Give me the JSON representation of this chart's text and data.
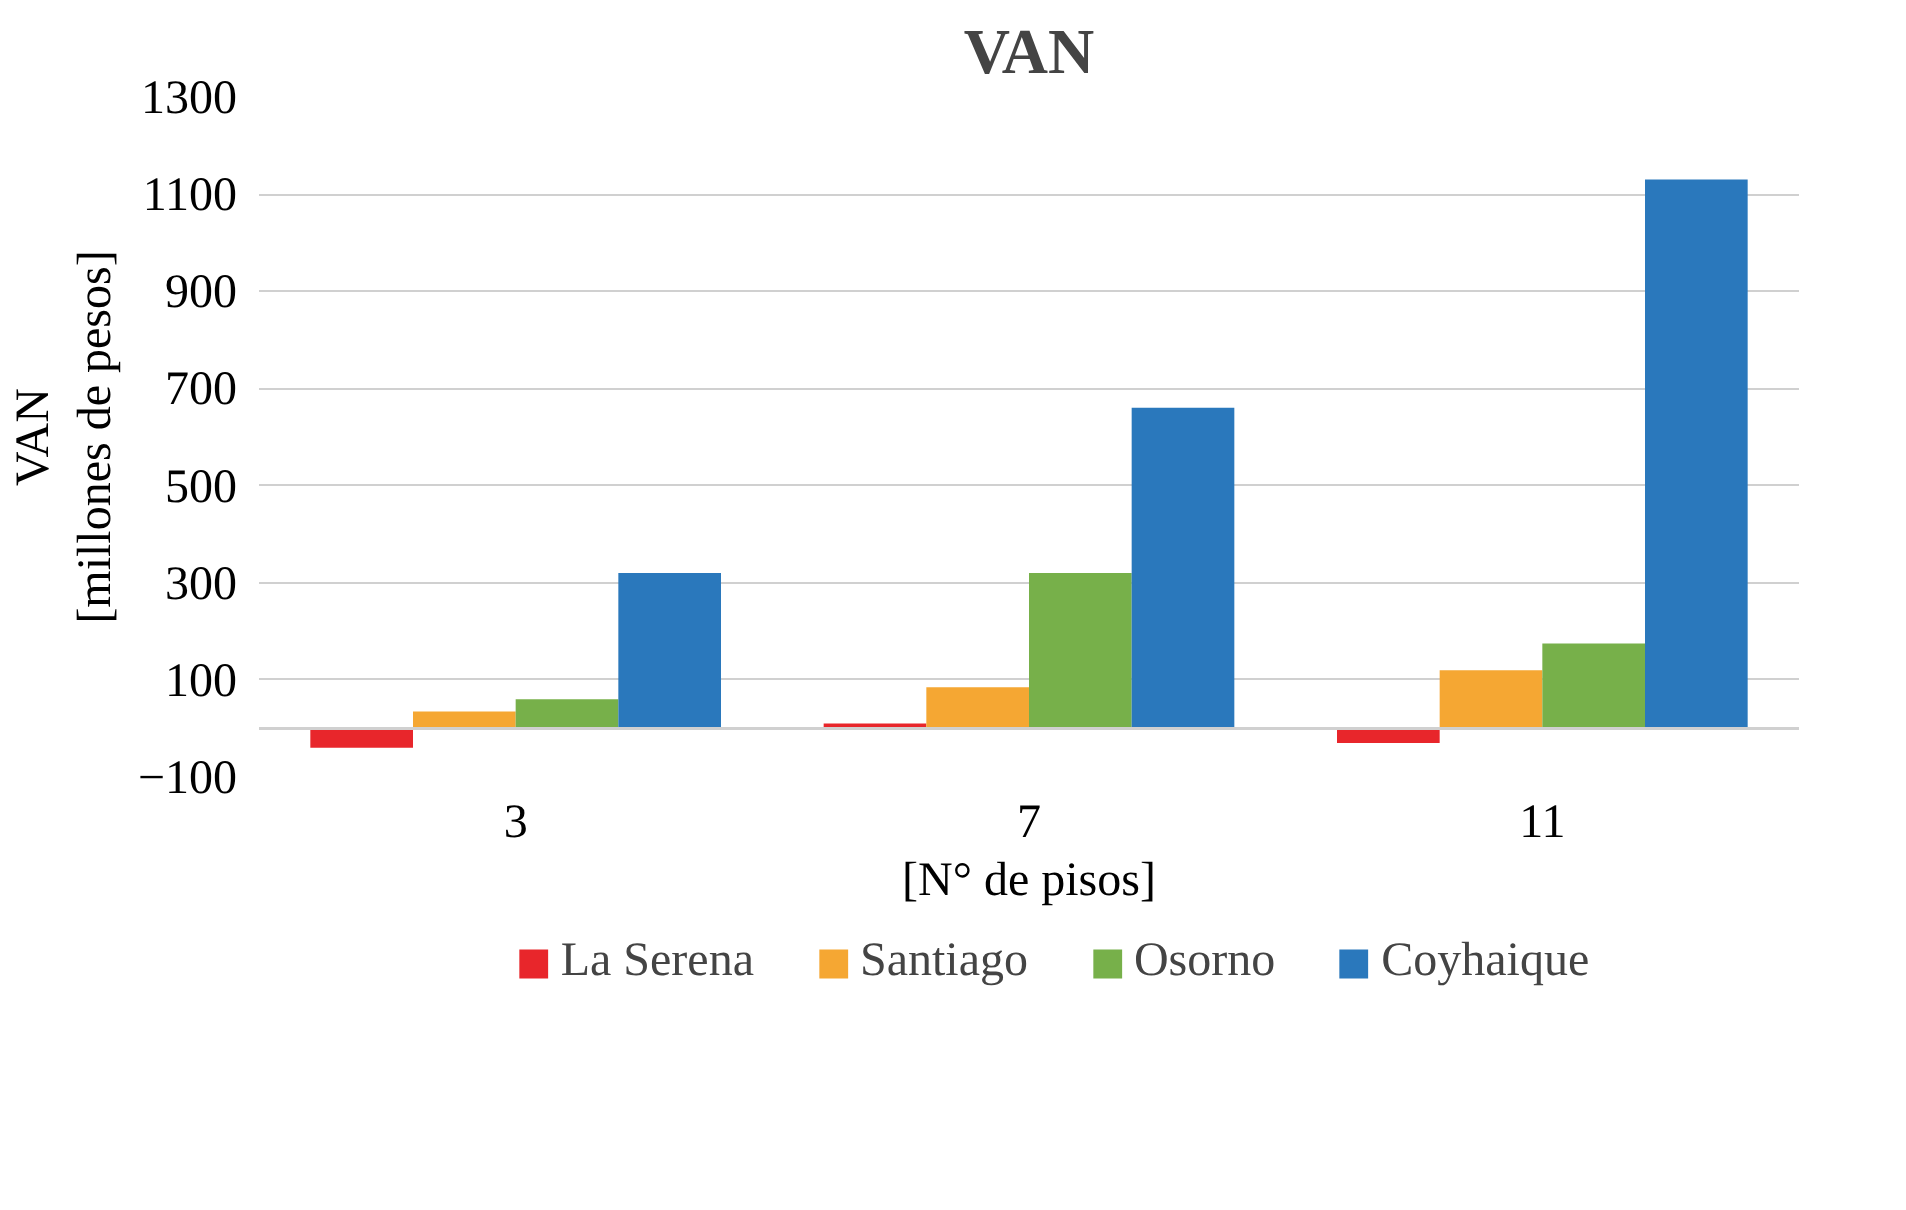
{
  "chart_data": {
    "type": "bar",
    "title": "VAN",
    "xlabel": "[N° de pisos]",
    "ylabel": "VAN\n[millones de pesos]",
    "categories": [
      "3",
      "7",
      "11"
    ],
    "series": [
      {
        "name": "La Serena",
        "color": "#e8262b",
        "values": [
          -40,
          10,
          -30
        ]
      },
      {
        "name": "Santiago",
        "color": "#f5a733",
        "values": [
          35,
          85,
          120
        ]
      },
      {
        "name": "Osorno",
        "color": "#77b04a",
        "values": [
          60,
          320,
          175
        ]
      },
      {
        "name": "Coyhaique",
        "color": "#2a78bc",
        "values": [
          320,
          660,
          1130
        ]
      }
    ],
    "ylim": [
      -100,
      1300
    ],
    "yticks": [
      -100,
      100,
      300,
      500,
      700,
      900,
      1100,
      1300
    ],
    "grid": "y",
    "legend": "bottom"
  }
}
